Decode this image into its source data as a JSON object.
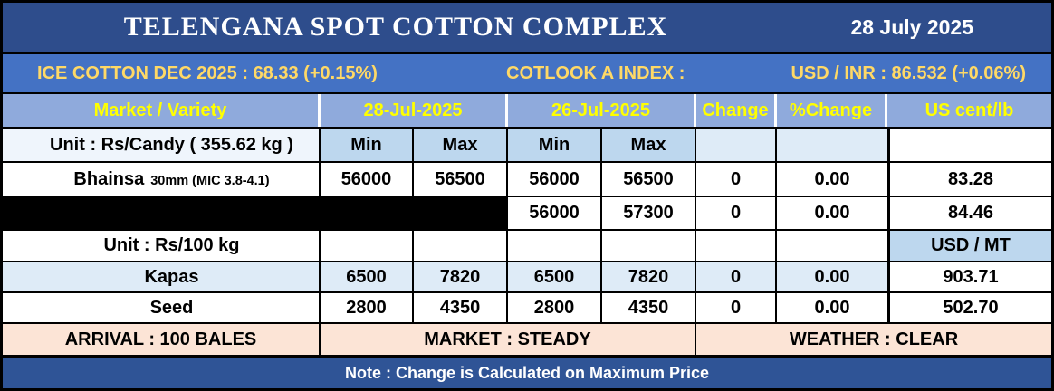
{
  "header": {
    "title": "TELENGANA SPOT COTTON COMPLEX",
    "date": "28 July 2025"
  },
  "ticker": {
    "ice_cotton": "ICE COTTON DEC 2025 : 68.33 (+0.15%)",
    "cotlook": "COTLOOK A INDEX :",
    "usd_inr": "USD / INR : 86.532 (+0.06%)"
  },
  "table": {
    "columns": {
      "market": "Market / Variety",
      "today": "28-Jul-2025",
      "prev": "26-Jul-2025",
      "change": "Change",
      "pct_change": "%Change",
      "us_cent": "US cent/lb"
    },
    "subheaders": {
      "min": "Min",
      "max": "Max",
      "usd_mt": "USD / MT"
    },
    "unit_candy": "Unit : Rs/Candy ( 355.62 kg )",
    "unit_100kg": "Unit : Rs/100 kg",
    "rows": [
      {
        "market": "Bhainsa",
        "spec": "30mm (MIC 3.8-4.1)",
        "t_min": "56000",
        "t_max": "56500",
        "p_min": "56000",
        "p_max": "56500",
        "change": "0",
        "pct": "0.00",
        "us": "83.28",
        "redacted": false
      },
      {
        "market": "",
        "spec": "",
        "t_min": "",
        "t_max": "",
        "p_min": "56000",
        "p_max": "57300",
        "change": "0",
        "pct": "0.00",
        "us": "84.46",
        "redacted": true
      },
      {
        "market": "Kapas",
        "spec": "",
        "t_min": "6500",
        "t_max": "7820",
        "p_min": "6500",
        "p_max": "7820",
        "change": "0",
        "pct": "0.00",
        "us": "903.71",
        "redacted": false
      },
      {
        "market": "Seed",
        "spec": "",
        "t_min": "2800",
        "t_max": "4350",
        "p_min": "2800",
        "p_max": "4350",
        "change": "0",
        "pct": "0.00",
        "us": "502.70",
        "redacted": false
      }
    ]
  },
  "footer": {
    "arrival": "ARRIVAL : 100 BALES",
    "market": "MARKET : STEADY",
    "weather": "WEATHER : CLEAR"
  },
  "note": "Note : Change is Calculated on Maximum Price",
  "colors": {
    "title_band": "#2e4d8c",
    "ticker_band": "#4472c4",
    "header_row": "#8faadc",
    "subheader_cell": "#bdd7ee",
    "row_tint": "#deebf7",
    "footer_band": "#fce4d6",
    "note_band": "#2f5496",
    "ticker_text": "#ffd966",
    "header_text": "#ffff00",
    "unit_text": "#00b0f0",
    "minmax_text": "#1f3864"
  }
}
